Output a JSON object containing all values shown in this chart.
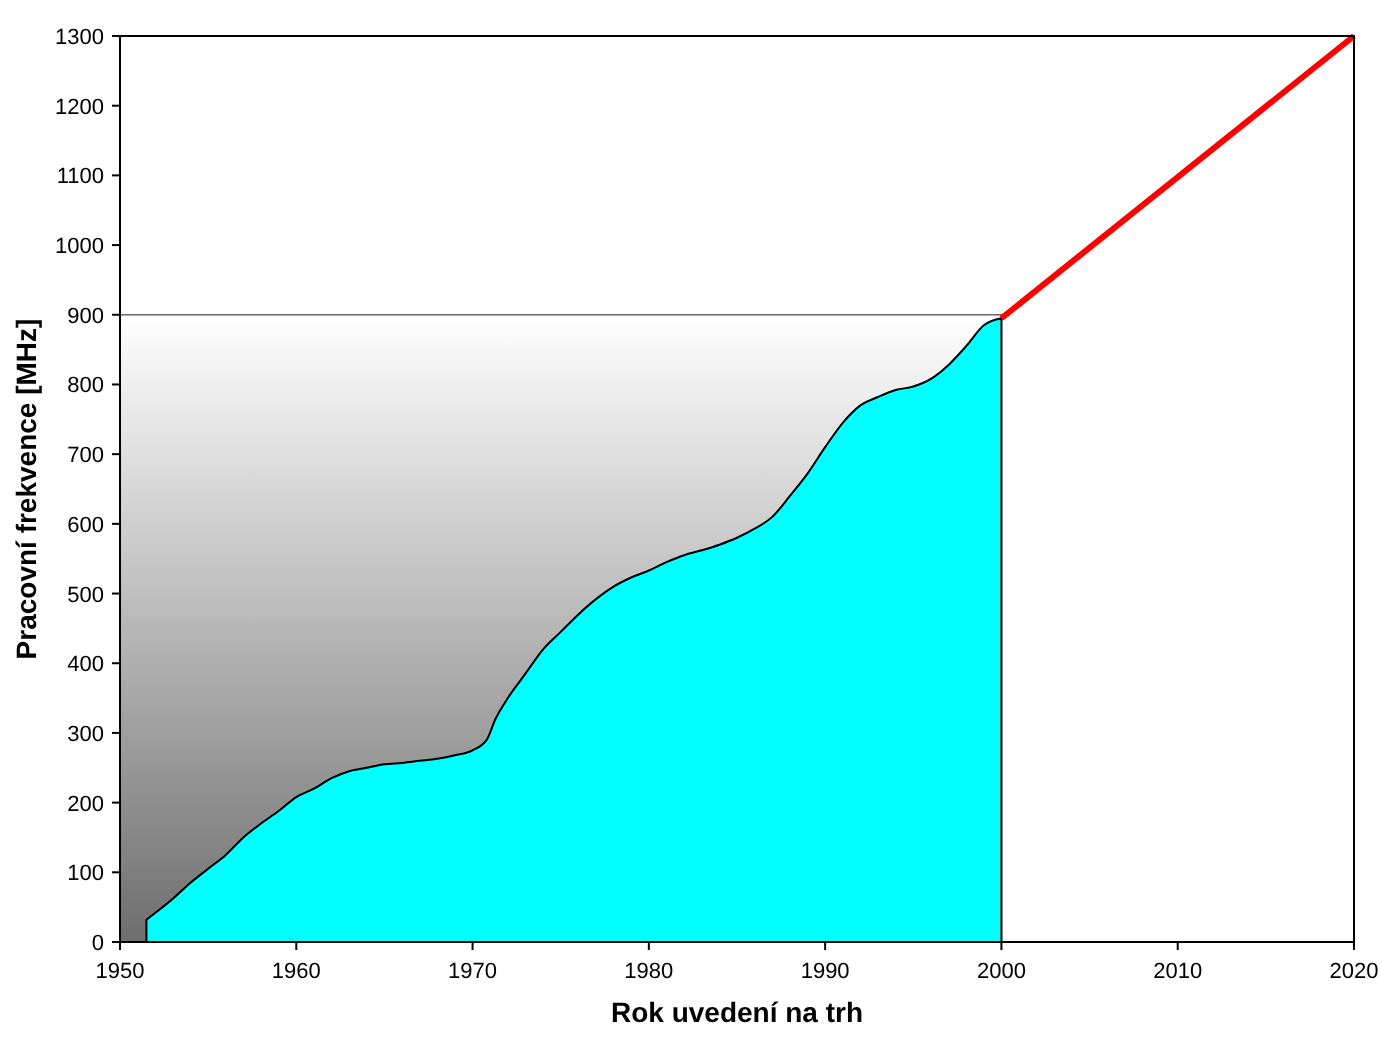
{
  "chart_data": {
    "type": "area",
    "xlabel": "Rok uvedení na trh",
    "ylabel": "Pracovní frekvence [MHz]",
    "xlim": [
      1950,
      2020
    ],
    "xticks": [
      1950,
      1960,
      1970,
      1980,
      1990,
      2000,
      2010,
      2020
    ],
    "ylim": [
      0,
      1300
    ],
    "yticks": [
      0,
      100,
      200,
      300,
      400,
      500,
      600,
      700,
      800,
      900,
      1000,
      1100,
      1200,
      1300
    ],
    "grid": false,
    "bands": [
      {
        "axis": "y",
        "from": 0,
        "to": 900,
        "color": "#6e6e6e"
      }
    ],
    "series": [
      {
        "color": "#00ffff",
        "x": [
          1951.5,
          1953,
          1954,
          1955,
          1956,
          1957,
          1958,
          1959,
          1960,
          1961,
          1962,
          1963,
          1964,
          1965,
          1966,
          1967,
          1968,
          1969,
          1970,
          1970.8,
          1971.3,
          1972,
          1973,
          1974,
          1975,
          1976,
          1977,
          1978,
          1979,
          1980,
          1981,
          1982,
          1983,
          1984,
          1985,
          1986,
          1987,
          1988,
          1989,
          1990,
          1991,
          1992,
          1993,
          1994,
          1995,
          1996,
          1997,
          1998,
          1999,
          2000
        ],
        "values": [
          32,
          62,
          85,
          105,
          125,
          150,
          170,
          188,
          208,
          220,
          235,
          245,
          250,
          255,
          257,
          260,
          263,
          268,
          275,
          290,
          320,
          350,
          385,
          420,
          445,
          470,
          492,
          510,
          523,
          533,
          545,
          555,
          562,
          570,
          580,
          593,
          610,
          640,
          672,
          710,
          745,
          770,
          782,
          792,
          797,
          808,
          828,
          855,
          885,
          895
        ]
      },
      {
        "type": "line",
        "color": "#ff0000",
        "x": [
          2000,
          2020
        ],
        "values": [
          895,
          1300
        ]
      }
    ]
  }
}
